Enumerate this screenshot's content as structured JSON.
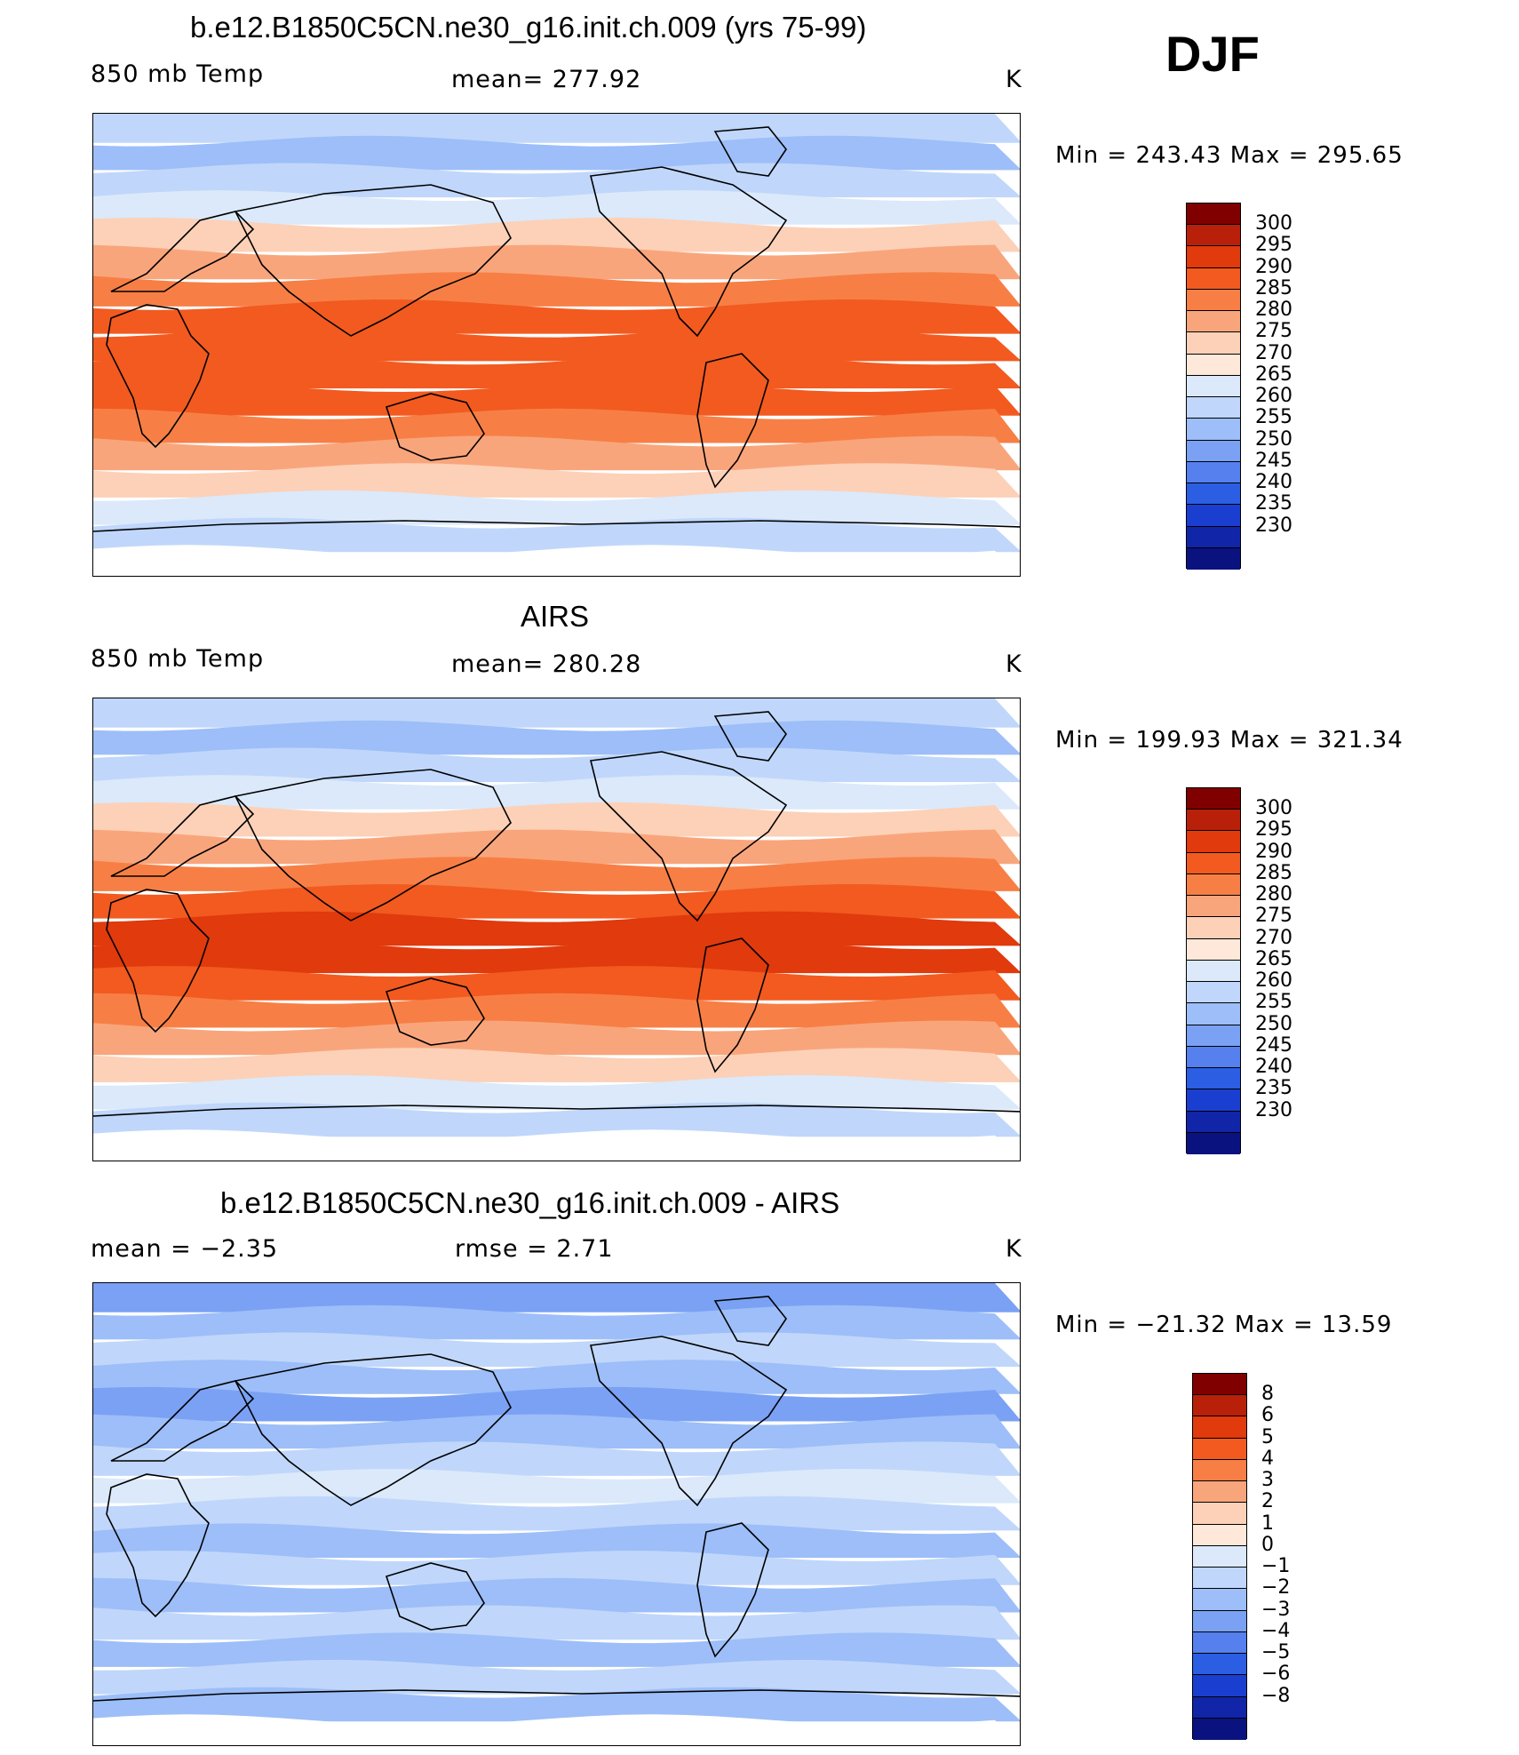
{
  "season": "DJF",
  "panels": [
    {
      "title": "b.e12.B1850C5CN.ne30_g16.init.ch.009 (yrs 75-99)",
      "left_label": "850 mb Temp",
      "center_label": "mean=  277.92",
      "right_label": "K",
      "minmax": "Min  =  243.43  Max  =  295.65",
      "palette": "temp"
    },
    {
      "title": "AIRS",
      "left_label": "850 mb Temp",
      "center_label": "mean=  280.28",
      "right_label": "K",
      "minmax": "Min  =  199.93  Max  =  321.34",
      "palette": "temp"
    },
    {
      "title": "b.e12.B1850C5CN.ne30_g16.init.ch.009 - AIRS",
      "left_label": "mean  =     −2.35",
      "center_label": "rmse  =     2.71",
      "right_label": "K",
      "minmax": "Min  =  −21.32  Max  =    13.59",
      "palette": "diff"
    }
  ],
  "colorbars": {
    "temp": {
      "colors": [
        "#800000",
        "#b8200a",
        "#e03a0d",
        "#f25a20",
        "#f77f45",
        "#f9a57c",
        "#fcd1b8",
        "#fde8da",
        "#dbe9fa",
        "#c0d7fb",
        "#9dbef8",
        "#7aa1f4",
        "#5580ee",
        "#2b5ee3",
        "#1a3fd0",
        "#1025a8",
        "#0a1280"
      ],
      "labels": [
        "300",
        "295",
        "290",
        "285",
        "280",
        "275",
        "270",
        "265",
        "260",
        "255",
        "250",
        "245",
        "240",
        "235",
        "230"
      ]
    },
    "diff": {
      "colors": [
        "#800000",
        "#b8200a",
        "#e03a0d",
        "#f25a20",
        "#f77f45",
        "#f9a57c",
        "#fcd1b8",
        "#fde8da",
        "#dbe9fa",
        "#c0d7fb",
        "#9dbef8",
        "#7aa1f4",
        "#5580ee",
        "#2b5ee3",
        "#1a3fd0",
        "#1025a8",
        "#0a1280"
      ],
      "labels": [
        "8",
        "6",
        "5",
        "4",
        "3",
        "2",
        "1",
        "0",
        "−1",
        "−2",
        "−3",
        "−4",
        "−5",
        "−6",
        "−8"
      ]
    }
  },
  "maps": {
    "map1_bands": [
      "#c0d7fb",
      "#9dbef8",
      "#c0d7fb",
      "#dbe9fa",
      "#fcd1b8",
      "#f9a57c",
      "#f77f45",
      "#f25a20",
      "#f25a20",
      "#f25a20",
      "#f25a20",
      "#f77f45",
      "#f9a57c",
      "#fcd1b8",
      "#dbe9fa",
      "#c0d7fb",
      "#ffffff"
    ],
    "map2_bands": [
      "#c0d7fb",
      "#9dbef8",
      "#c0d7fb",
      "#dbe9fa",
      "#fcd1b8",
      "#f9a57c",
      "#f77f45",
      "#f25a20",
      "#e03a0d",
      "#e03a0d",
      "#f25a20",
      "#f77f45",
      "#f9a57c",
      "#fcd1b8",
      "#dbe9fa",
      "#c0d7fb",
      "#ffffff"
    ],
    "map3_bands": [
      "#7aa1f4",
      "#9dbef8",
      "#c0d7fb",
      "#9dbef8",
      "#7aa1f4",
      "#9dbef8",
      "#c0d7fb",
      "#dbe9fa",
      "#c0d7fb",
      "#9dbef8",
      "#c0d7fb",
      "#9dbef8",
      "#c0d7fb",
      "#9dbef8",
      "#c0d7fb",
      "#9dbef8",
      "#ffffff"
    ]
  }
}
